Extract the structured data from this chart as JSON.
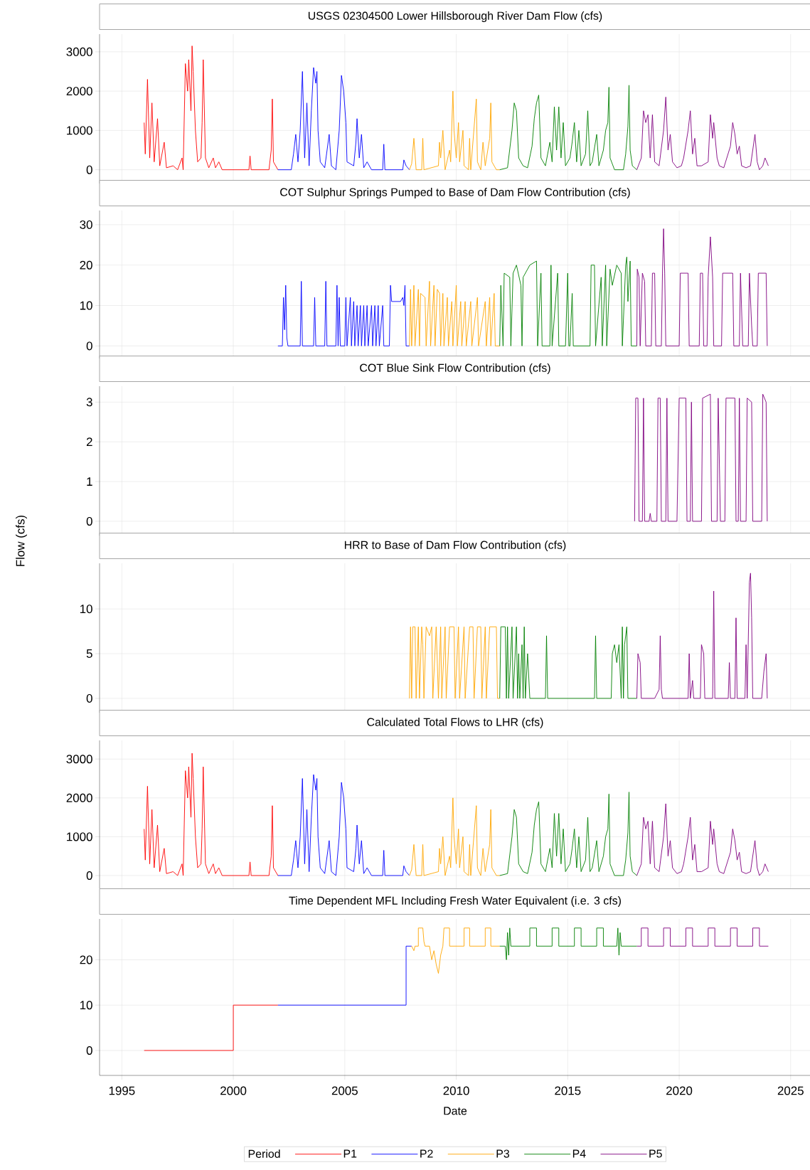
{
  "chart_data": [
    {
      "type": "line",
      "title": "USGS 02304500 Lower Hillsborough River Dam Flow (cfs)",
      "xlim": [
        1994,
        2025.9
      ],
      "ylim": [
        -350,
        3450
      ],
      "xticks": [
        1995,
        2000,
        2005,
        2010,
        2015,
        2020,
        2025
      ],
      "yticks": [
        0,
        1000,
        2000,
        3000
      ],
      "grid": true,
      "tick_labels": "y",
      "series": [
        {
          "color": "#ff0000",
          "x": [
            1996.0,
            1996.05,
            1996.15,
            1996.25,
            1996.35,
            1996.45,
            1996.6,
            1996.7,
            1996.9,
            1997.0,
            1997.3,
            1997.5,
            1997.7,
            1997.75,
            1997.85,
            1997.95,
            1998.0,
            1998.1,
            1998.15,
            1998.2,
            1998.3,
            1998.4,
            1998.55,
            1998.6,
            1998.65,
            1998.75,
            1998.9,
            1999.1,
            1999.2,
            1999.35,
            1999.5,
            2000.0,
            2000.7,
            2000.75,
            2000.8,
            2001.6,
            2001.7,
            2001.75,
            2001.8,
            2002.0
          ],
          "values": [
            1200,
            400,
            2300,
            300,
            1700,
            200,
            1300,
            100,
            700,
            50,
            100,
            0,
            300,
            0,
            2700,
            2000,
            2800,
            1500,
            3150,
            2500,
            1000,
            200,
            300,
            1200,
            2800,
            300,
            50,
            300,
            50,
            200,
            0,
            0,
            0,
            350,
            0,
            0,
            500,
            1800,
            200,
            0
          ]
        },
        {
          "color": "#0000ff",
          "x": [
            2002.0,
            2002.6,
            2002.7,
            2002.8,
            2002.9,
            2003.0,
            2003.1,
            2003.2,
            2003.3,
            2003.4,
            2003.5,
            2003.6,
            2003.7,
            2003.75,
            2003.8,
            2003.9,
            2004.1,
            2004.3,
            2004.4,
            2004.6,
            2004.75,
            2004.85,
            2004.95,
            2005.05,
            2005.1,
            2005.4,
            2005.5,
            2005.55,
            2005.65,
            2005.75,
            2005.85,
            2006.0,
            2006.2,
            2006.7,
            2006.75,
            2006.8,
            2007.6,
            2007.65,
            2007.75,
            2007.9
          ],
          "values": [
            0,
            0,
            400,
            900,
            200,
            1000,
            2500,
            300,
            1700,
            100,
            1500,
            2600,
            2200,
            2500,
            1000,
            200,
            50,
            900,
            100,
            0,
            1000,
            2400,
            2000,
            1200,
            200,
            100,
            700,
            1300,
            300,
            900,
            50,
            200,
            0,
            0,
            650,
            0,
            0,
            250,
            100,
            0
          ]
        },
        {
          "color": "#ffa500",
          "x": [
            2007.9,
            2008.0,
            2008.1,
            2008.2,
            2008.45,
            2008.5,
            2008.55,
            2009.2,
            2009.25,
            2009.3,
            2009.4,
            2009.5,
            2009.7,
            2009.75,
            2009.85,
            2009.9,
            2010.0,
            2010.1,
            2010.15,
            2010.3,
            2010.35,
            2010.55,
            2010.6,
            2010.65,
            2010.9,
            2010.95,
            2011.1,
            2011.2,
            2011.3,
            2011.5,
            2011.55,
            2011.6,
            2011.8,
            2011.95
          ],
          "values": [
            0,
            150,
            800,
            0,
            0,
            800,
            0,
            100,
            700,
            300,
            1000,
            0,
            500,
            200,
            2000,
            1000,
            300,
            1200,
            200,
            1000,
            100,
            0,
            800,
            0,
            1800,
            200,
            0,
            700,
            100,
            800,
            1700,
            200,
            0,
            0
          ]
        },
        {
          "color": "#008000",
          "x": [
            2011.95,
            2012.3,
            2012.5,
            2012.6,
            2012.7,
            2012.8,
            2013.0,
            2013.2,
            2013.4,
            2013.5,
            2013.6,
            2013.7,
            2013.8,
            2014.0,
            2014.2,
            2014.3,
            2014.4,
            2014.5,
            2014.6,
            2014.7,
            2014.8,
            2014.9,
            2015.1,
            2015.2,
            2015.3,
            2015.4,
            2015.5,
            2015.6,
            2015.8,
            2015.9,
            2016.0,
            2016.1,
            2016.3,
            2016.4,
            2016.6,
            2016.7,
            2016.8,
            2016.85,
            2016.9,
            2017.1,
            2017.5,
            2017.6,
            2017.7,
            2017.75,
            2017.8,
            2017.9,
            2018.1
          ],
          "values": [
            0,
            50,
            1000,
            1700,
            1500,
            300,
            100,
            50,
            600,
            1300,
            1700,
            1900,
            300,
            100,
            700,
            200,
            1600,
            500,
            1600,
            300,
            1200,
            100,
            300,
            700,
            1200,
            200,
            1000,
            100,
            400,
            1500,
            100,
            200,
            900,
            100,
            500,
            1000,
            1200,
            2100,
            300,
            0,
            0,
            400,
            1100,
            2150,
            500,
            100,
            0
          ]
        },
        {
          "color": "#800080",
          "x": [
            2018.1,
            2018.3,
            2018.4,
            2018.5,
            2018.6,
            2018.7,
            2018.8,
            2018.9,
            2019.1,
            2019.3,
            2019.4,
            2019.5,
            2019.6,
            2019.7,
            2019.9,
            2020.1,
            2020.2,
            2020.4,
            2020.5,
            2020.6,
            2020.7,
            2020.8,
            2021.0,
            2021.3,
            2021.4,
            2021.5,
            2021.55,
            2021.7,
            2021.8,
            2022.0,
            2022.3,
            2022.4,
            2022.5,
            2022.6,
            2022.7,
            2022.8,
            2023.0,
            2023.2,
            2023.4,
            2023.5,
            2023.6,
            2023.75,
            2023.85,
            2024.0
          ],
          "values": [
            0,
            300,
            1500,
            1200,
            1400,
            300,
            1400,
            200,
            100,
            1000,
            1850,
            500,
            900,
            200,
            50,
            100,
            300,
            1000,
            1500,
            400,
            800,
            100,
            100,
            200,
            1400,
            800,
            1200,
            300,
            100,
            50,
            600,
            1200,
            900,
            400,
            600,
            100,
            50,
            100,
            900,
            200,
            0,
            100,
            300,
            100
          ]
        }
      ]
    },
    {
      "type": "line",
      "title": "COT Sulphur Springs Pumped to Base of Dam Flow Contribution (cfs)",
      "xlim": [
        1994,
        2025.9
      ],
      "ylim": [
        -3.1,
        33.5
      ],
      "xticks": [
        1995,
        2000,
        2005,
        2010,
        2015,
        2020,
        2025
      ],
      "yticks": [
        0,
        10,
        20,
        30
      ],
      "grid": true,
      "tick_labels": "y",
      "series": [
        {
          "color": "#0000ff",
          "x": [
            2002.0,
            2002.2,
            2002.25,
            2002.3,
            2002.35,
            2002.4,
            2002.45,
            2003.0,
            2003.05,
            2003.1,
            2003.6,
            2003.65,
            2003.7,
            2004.1,
            2004.15,
            2004.2,
            2004.6,
            2004.65,
            2004.7,
            2004.75,
            2004.8,
            2005.0,
            2005.05,
            2005.1,
            2005.25,
            2005.3,
            2005.4,
            2005.45,
            2005.55,
            2005.6,
            2005.7,
            2005.75,
            2005.85,
            2005.9,
            2006.0,
            2006.05,
            2006.2,
            2006.25,
            2006.35,
            2006.4,
            2006.5,
            2006.55,
            2006.7,
            2006.75,
            2007.0,
            2007.05,
            2007.1,
            2007.5,
            2007.6,
            2007.65,
            2007.7,
            2007.75,
            2007.9
          ],
          "values": [
            0,
            0,
            12,
            4,
            15,
            2,
            0,
            0,
            16,
            0,
            0,
            12,
            0,
            0,
            16,
            0,
            0,
            15,
            0,
            12,
            0,
            0,
            12,
            0,
            12,
            0,
            11,
            0,
            10,
            0,
            10,
            0,
            10,
            0,
            10,
            0,
            10,
            0,
            10,
            0,
            10,
            0,
            10,
            0,
            0,
            15,
            11,
            11,
            12,
            10,
            15,
            0,
            0
          ]
        },
        {
          "color": "#ffa500",
          "x": [
            2007.9,
            2007.95,
            2008.0,
            2008.1,
            2008.15,
            2008.3,
            2008.35,
            2008.4,
            2008.6,
            2008.65,
            2008.8,
            2008.85,
            2009.0,
            2009.05,
            2009.15,
            2009.25,
            2009.3,
            2009.4,
            2009.45,
            2009.6,
            2009.65,
            2009.8,
            2009.85,
            2010.0,
            2010.05,
            2010.2,
            2010.25,
            2010.4,
            2010.45,
            2010.65,
            2010.7,
            2010.95,
            2011.0,
            2011.3,
            2011.35,
            2011.5,
            2011.55,
            2011.7,
            2011.75,
            2011.95
          ],
          "values": [
            0,
            14,
            0,
            15,
            0,
            14,
            0,
            13,
            12,
            0,
            16,
            0,
            15,
            0,
            14,
            13,
            0,
            13,
            0,
            12,
            0,
            11,
            0,
            15,
            0,
            11,
            0,
            11,
            0,
            11,
            0,
            12,
            0,
            11,
            0,
            12,
            0,
            13,
            0,
            0
          ]
        },
        {
          "color": "#008000",
          "x": [
            2011.95,
            2012.0,
            2012.1,
            2012.15,
            2012.4,
            2012.45,
            2012.55,
            2012.7,
            2012.9,
            2012.95,
            2013.0,
            2013.3,
            2013.6,
            2013.65,
            2013.8,
            2013.85,
            2014.2,
            2014.25,
            2014.3,
            2014.55,
            2014.6,
            2014.9,
            2015.0,
            2015.05,
            2015.1,
            2015.2,
            2015.25,
            2016.0,
            2016.05,
            2016.2,
            2016.25,
            2016.5,
            2016.55,
            2016.7,
            2016.75,
            2016.9,
            2017.0,
            2017.2,
            2017.4,
            2017.45,
            2017.6,
            2017.65,
            2017.7,
            2017.8,
            2017.85,
            2018.1
          ],
          "values": [
            0,
            15,
            0,
            18,
            17,
            0,
            18,
            20,
            15,
            0,
            17,
            20,
            21,
            0,
            18,
            0,
            0,
            20,
            0,
            18,
            0,
            0,
            18,
            0,
            0,
            13,
            0,
            0,
            20,
            20,
            0,
            17,
            0,
            20,
            0,
            19,
            15,
            20,
            18,
            0,
            20,
            22,
            11,
            21,
            0,
            0
          ]
        },
        {
          "color": "#800080",
          "x": [
            2018.1,
            2018.12,
            2018.2,
            2018.25,
            2018.35,
            2018.45,
            2018.5,
            2018.75,
            2018.8,
            2018.9,
            2018.95,
            2019.2,
            2019.25,
            2019.3,
            2019.35,
            2019.4,
            2020.0,
            2020.05,
            2020.4,
            2020.45,
            2020.9,
            2020.95,
            2021.05,
            2021.1,
            2021.25,
            2021.3,
            2021.4,
            2021.5,
            2021.55,
            2021.9,
            2021.95,
            2022.4,
            2022.45,
            2022.7,
            2022.75,
            2022.85,
            2023.1,
            2023.15,
            2023.25,
            2023.3,
            2023.5,
            2023.55,
            2023.9,
            2023.95
          ],
          "values": [
            0,
            19,
            17,
            0,
            18,
            16,
            0,
            0,
            18,
            18,
            0,
            0,
            18,
            29,
            18,
            0,
            0,
            18,
            18,
            0,
            0,
            18,
            18,
            0,
            0,
            17,
            27,
            17,
            0,
            0,
            18,
            18,
            0,
            0,
            18,
            0,
            0,
            18,
            5,
            0,
            0,
            18,
            18,
            0
          ]
        }
      ]
    },
    {
      "type": "line",
      "title": "COT Blue Sink Flow Contribution (cfs)",
      "xlim": [
        1994,
        2025.9
      ],
      "ylim": [
        -0.36,
        3.4
      ],
      "xticks": [
        1995,
        2000,
        2005,
        2010,
        2015,
        2020,
        2025
      ],
      "yticks": [
        0,
        1,
        2,
        3
      ],
      "grid": true,
      "tick_labels": "y",
      "series": [
        {
          "color": "#800080",
          "x": [
            2018.0,
            2018.05,
            2018.15,
            2018.2,
            2018.35,
            2018.4,
            2018.45,
            2018.65,
            2018.7,
            2018.75,
            2019.0,
            2019.05,
            2019.15,
            2019.2,
            2019.4,
            2019.45,
            2019.5,
            2019.9,
            2020.0,
            2020.3,
            2020.35,
            2020.5,
            2020.55,
            2020.6,
            2021.0,
            2021.05,
            2021.4,
            2021.45,
            2021.7,
            2021.75,
            2021.85,
            2022.05,
            2022.1,
            2022.5,
            2022.55,
            2022.65,
            2022.7,
            2022.75,
            2023.0,
            2023.05,
            2023.25,
            2023.3,
            2023.7,
            2023.75,
            2023.9,
            2023.95
          ],
          "values": [
            0,
            3.1,
            3.1,
            0,
            0,
            3.1,
            0,
            0,
            0.2,
            0,
            0,
            3.1,
            3.1,
            0,
            0,
            3.1,
            0,
            0,
            3.1,
            3.1,
            0,
            0,
            3.0,
            0,
            0,
            3.1,
            3.2,
            0,
            0,
            3.1,
            0,
            0,
            3.1,
            3.1,
            0,
            0,
            3.1,
            0,
            0,
            3.1,
            3.0,
            0,
            0,
            3.2,
            3.0,
            0
          ]
        }
      ]
    },
    {
      "type": "line",
      "title": "HRR to Base of Dam Flow Contribution (cfs)",
      "ylabel": "Flow (cfs)",
      "xlim": [
        1994,
        2025.9
      ],
      "ylim": [
        -1.6,
        15.1
      ],
      "xticks": [
        1995,
        2000,
        2005,
        2010,
        2015,
        2020,
        2025
      ],
      "yticks": [
        0,
        5,
        10
      ],
      "grid": true,
      "tick_labels": "y",
      "series": [
        {
          "color": "#ffa500",
          "x": [
            2007.9,
            2007.95,
            2008.0,
            2008.05,
            2008.15,
            2008.2,
            2008.3,
            2008.35,
            2008.45,
            2008.5,
            2008.55,
            2008.65,
            2008.8,
            2008.9,
            2008.95,
            2009.1,
            2009.2,
            2009.3,
            2009.35,
            2009.5,
            2009.55,
            2009.7,
            2009.9,
            2009.95,
            2010.1,
            2010.15,
            2010.35,
            2010.4,
            2010.6,
            2010.75,
            2010.8,
            2010.95,
            2011.1,
            2011.15,
            2011.3,
            2011.35,
            2011.5,
            2011.8,
            2011.85,
            2011.95
          ],
          "values": [
            0,
            8,
            0,
            8,
            8,
            0,
            8,
            0,
            8,
            6,
            0,
            8,
            7,
            8,
            0,
            8,
            0,
            8,
            0,
            8,
            0,
            8,
            8,
            0,
            8,
            0,
            8,
            0,
            8,
            8,
            0,
            8,
            8,
            0,
            8,
            0,
            8,
            8,
            0,
            0
          ]
        },
        {
          "color": "#008000",
          "x": [
            2011.95,
            2012.0,
            2012.2,
            2012.25,
            2012.3,
            2012.35,
            2012.5,
            2012.55,
            2012.7,
            2012.75,
            2012.8,
            2012.85,
            2012.95,
            2013.0,
            2013.05,
            2013.1,
            2013.2,
            2013.3,
            2014.0,
            2014.05,
            2014.1,
            2016.2,
            2016.25,
            2016.3,
            2016.95,
            2017.0,
            2017.1,
            2017.2,
            2017.3,
            2017.4,
            2017.45,
            2017.5,
            2017.55,
            2017.65,
            2017.7,
            2018.1
          ],
          "values": [
            0,
            8,
            8,
            0,
            8,
            0,
            8,
            0,
            8,
            0,
            5,
            0,
            6,
            0,
            8,
            0,
            5,
            0,
            0,
            7,
            0,
            0,
            7,
            0,
            0,
            5,
            6,
            4,
            6,
            0,
            8,
            0,
            6,
            8,
            0,
            0
          ]
        },
        {
          "color": "#800080",
          "x": [
            2018.1,
            2018.15,
            2018.25,
            2018.3,
            2018.9,
            2019.1,
            2019.15,
            2019.2,
            2019.25,
            2020.4,
            2020.45,
            2020.5,
            2020.6,
            2020.65,
            2020.95,
            2021.0,
            2021.1,
            2021.15,
            2021.5,
            2021.55,
            2021.6,
            2022.2,
            2022.25,
            2022.3,
            2022.5,
            2022.55,
            2022.6,
            2022.95,
            2023.0,
            2023.05,
            2023.15,
            2023.2,
            2023.25,
            2023.3,
            2023.7,
            2023.8,
            2023.9,
            2023.95
          ],
          "values": [
            0,
            5,
            4,
            0,
            0,
            1,
            7,
            1,
            0,
            0,
            5,
            0,
            2,
            0,
            0,
            6,
            5,
            0,
            0,
            12,
            0,
            0,
            4,
            0,
            0,
            9,
            0,
            0,
            6,
            0,
            13,
            14,
            9,
            0,
            0,
            3,
            5,
            0
          ]
        }
      ]
    },
    {
      "type": "line",
      "title": "Calculated Total Flows to LHR (cfs)",
      "xlim": [
        1994,
        2025.9
      ],
      "ylim": [
        -330,
        3480
      ],
      "xticks": [
        1995,
        2000,
        2005,
        2010,
        2015,
        2020,
        2025
      ],
      "yticks": [
        0,
        1000,
        2000,
        3000
      ],
      "grid": true,
      "tick_labels": "y",
      "series": [
        {
          "color": "#ff0000",
          "x": [
            1996.0,
            1996.05,
            1996.15,
            1996.25,
            1996.35,
            1996.45,
            1996.6,
            1996.7,
            1996.9,
            1997.0,
            1997.3,
            1997.5,
            1997.7,
            1997.75,
            1997.85,
            1997.95,
            1998.0,
            1998.1,
            1998.15,
            1998.2,
            1998.3,
            1998.4,
            1998.55,
            1998.6,
            1998.65,
            1998.75,
            1998.9,
            1999.1,
            1999.2,
            1999.35,
            1999.5,
            2000.0,
            2000.7,
            2000.75,
            2000.8,
            2001.6,
            2001.7,
            2001.75,
            2001.8,
            2002.0
          ],
          "values": [
            1200,
            400,
            2300,
            300,
            1700,
            200,
            1300,
            100,
            700,
            50,
            100,
            0,
            300,
            0,
            2700,
            2000,
            2800,
            1500,
            3150,
            2500,
            1000,
            200,
            300,
            1200,
            2800,
            300,
            50,
            300,
            50,
            200,
            0,
            0,
            0,
            350,
            0,
            0,
            500,
            1800,
            200,
            0
          ]
        },
        {
          "color": "#0000ff",
          "x": [
            2002.0,
            2002.6,
            2002.7,
            2002.8,
            2002.9,
            2003.0,
            2003.1,
            2003.2,
            2003.3,
            2003.4,
            2003.5,
            2003.6,
            2003.7,
            2003.75,
            2003.8,
            2003.9,
            2004.1,
            2004.3,
            2004.4,
            2004.6,
            2004.75,
            2004.85,
            2004.95,
            2005.05,
            2005.1,
            2005.4,
            2005.5,
            2005.55,
            2005.65,
            2005.75,
            2005.85,
            2006.0,
            2006.2,
            2006.7,
            2006.75,
            2006.8,
            2007.6,
            2007.65,
            2007.75,
            2007.9
          ],
          "values": [
            0,
            0,
            400,
            900,
            200,
            1000,
            2500,
            300,
            1700,
            100,
            1500,
            2600,
            2200,
            2500,
            1000,
            200,
            50,
            900,
            100,
            0,
            1000,
            2400,
            2000,
            1200,
            200,
            100,
            700,
            1300,
            300,
            900,
            50,
            200,
            0,
            0,
            650,
            0,
            0,
            250,
            100,
            0
          ]
        },
        {
          "color": "#ffa500",
          "x": [
            2007.9,
            2008.0,
            2008.1,
            2008.2,
            2008.45,
            2008.5,
            2008.55,
            2009.2,
            2009.25,
            2009.3,
            2009.4,
            2009.5,
            2009.7,
            2009.75,
            2009.85,
            2009.9,
            2010.0,
            2010.1,
            2010.15,
            2010.3,
            2010.35,
            2010.55,
            2010.6,
            2010.65,
            2010.9,
            2010.95,
            2011.1,
            2011.2,
            2011.3,
            2011.5,
            2011.55,
            2011.6,
            2011.8,
            2011.95
          ],
          "values": [
            0,
            150,
            800,
            0,
            0,
            800,
            0,
            100,
            700,
            300,
            1000,
            0,
            500,
            200,
            2000,
            1000,
            300,
            1200,
            200,
            1000,
            100,
            0,
            800,
            0,
            1800,
            200,
            0,
            700,
            100,
            800,
            1700,
            200,
            0,
            0
          ]
        },
        {
          "color": "#008000",
          "x": [
            2011.95,
            2012.3,
            2012.5,
            2012.6,
            2012.7,
            2012.8,
            2013.0,
            2013.2,
            2013.4,
            2013.5,
            2013.6,
            2013.7,
            2013.8,
            2014.0,
            2014.2,
            2014.3,
            2014.4,
            2014.5,
            2014.6,
            2014.7,
            2014.8,
            2014.9,
            2015.1,
            2015.2,
            2015.3,
            2015.4,
            2015.5,
            2015.6,
            2015.8,
            2015.9,
            2016.0,
            2016.1,
            2016.3,
            2016.4,
            2016.6,
            2016.7,
            2016.8,
            2016.85,
            2016.9,
            2017.1,
            2017.5,
            2017.6,
            2017.7,
            2017.75,
            2017.8,
            2017.9,
            2018.1
          ],
          "values": [
            0,
            50,
            1000,
            1700,
            1500,
            300,
            100,
            50,
            600,
            1300,
            1700,
            1900,
            300,
            100,
            700,
            200,
            1600,
            500,
            1600,
            300,
            1200,
            100,
            300,
            700,
            1200,
            200,
            1000,
            100,
            400,
            1500,
            100,
            200,
            900,
            100,
            500,
            1000,
            1200,
            2100,
            300,
            0,
            0,
            400,
            1100,
            2150,
            500,
            100,
            0
          ]
        },
        {
          "color": "#800080",
          "x": [
            2018.1,
            2018.3,
            2018.4,
            2018.5,
            2018.6,
            2018.7,
            2018.8,
            2018.9,
            2019.1,
            2019.3,
            2019.4,
            2019.5,
            2019.6,
            2019.7,
            2019.9,
            2020.1,
            2020.2,
            2020.4,
            2020.5,
            2020.6,
            2020.7,
            2020.8,
            2021.0,
            2021.3,
            2021.4,
            2021.5,
            2021.55,
            2021.7,
            2021.8,
            2022.0,
            2022.3,
            2022.4,
            2022.5,
            2022.6,
            2022.7,
            2022.8,
            2023.0,
            2023.2,
            2023.4,
            2023.5,
            2023.6,
            2023.75,
            2023.85,
            2024.0
          ],
          "values": [
            0,
            300,
            1500,
            1200,
            1400,
            300,
            1400,
            200,
            100,
            1000,
            1850,
            500,
            900,
            200,
            50,
            100,
            300,
            1000,
            1500,
            400,
            800,
            100,
            100,
            200,
            1400,
            800,
            1200,
            300,
            100,
            50,
            600,
            1200,
            900,
            400,
            600,
            100,
            50,
            100,
            900,
            200,
            0,
            100,
            300,
            100
          ]
        }
      ]
    },
    {
      "type": "line",
      "title": "Time Dependent MFL Including Fresh Water Equivalent (i.e. 3 cfs)",
      "xlabel": "Date",
      "legend_title": "Period",
      "legend": "bottom",
      "xlim": [
        1994,
        2025.9
      ],
      "ylim": [
        -5.5,
        29
      ],
      "xticks": [
        1995,
        2000,
        2005,
        2010,
        2015,
        2020,
        2025
      ],
      "yticks": [
        0,
        10,
        20
      ],
      "grid": true,
      "series": [
        {
          "name": "P1",
          "color": "#ff0000",
          "x": [
            1996.0,
            2000.0,
            2000.0,
            2002.0
          ],
          "values": [
            0,
            0,
            10,
            10
          ]
        },
        {
          "name": "P2",
          "color": "#0000ff",
          "x": [
            2002.0,
            2007.75,
            2007.75,
            2008.0
          ],
          "values": [
            10,
            10,
            23,
            23
          ]
        },
        {
          "name": "P3",
          "color": "#ffa500",
          "x": [
            2008.0,
            2008.1,
            2008.15,
            2008.3,
            2008.3,
            2008.5,
            2008.55,
            2008.6,
            2008.8,
            2008.9,
            2009.0,
            2009.1,
            2009.2,
            2009.3,
            2009.4,
            2009.45,
            2009.7,
            2009.7,
            2010.35,
            2010.35,
            2010.6,
            2010.6,
            2011.3,
            2011.3,
            2011.55,
            2011.55,
            2011.95
          ],
          "values": [
            23,
            22,
            23,
            23,
            27,
            27,
            24,
            23,
            23,
            20,
            22,
            19,
            17,
            21,
            23,
            27,
            27,
            23,
            23,
            27,
            27,
            23,
            23,
            27,
            27,
            23,
            23
          ]
        },
        {
          "name": "P4",
          "color": "#008000",
          "x": [
            2011.95,
            2012.2,
            2012.25,
            2012.3,
            2012.35,
            2012.4,
            2012.45,
            2013.3,
            2013.3,
            2013.6,
            2013.6,
            2014.3,
            2014.3,
            2014.6,
            2014.6,
            2015.3,
            2015.3,
            2015.6,
            2015.6,
            2016.3,
            2016.3,
            2016.6,
            2016.6,
            2017.2,
            2017.25,
            2017.3,
            2017.35,
            2017.4,
            2018.1
          ],
          "values": [
            23,
            23,
            20,
            26,
            21,
            27,
            23,
            23,
            27,
            27,
            23,
            23,
            27,
            27,
            23,
            23,
            27,
            27,
            23,
            23,
            27,
            27,
            23,
            23,
            27,
            21,
            26,
            23,
            23
          ]
        },
        {
          "name": "P5",
          "color": "#800080",
          "x": [
            2018.1,
            2018.3,
            2018.3,
            2018.6,
            2018.6,
            2019.3,
            2019.3,
            2019.6,
            2019.6,
            2020.3,
            2020.3,
            2020.6,
            2020.6,
            2021.3,
            2021.3,
            2021.6,
            2021.6,
            2022.3,
            2022.3,
            2022.6,
            2022.6,
            2023.3,
            2023.3,
            2023.6,
            2023.6,
            2024.0
          ],
          "values": [
            23,
            23,
            27,
            27,
            23,
            23,
            27,
            27,
            23,
            23,
            27,
            27,
            23,
            23,
            27,
            27,
            23,
            23,
            27,
            27,
            23,
            23,
            27,
            27,
            23,
            23
          ]
        }
      ]
    }
  ]
}
